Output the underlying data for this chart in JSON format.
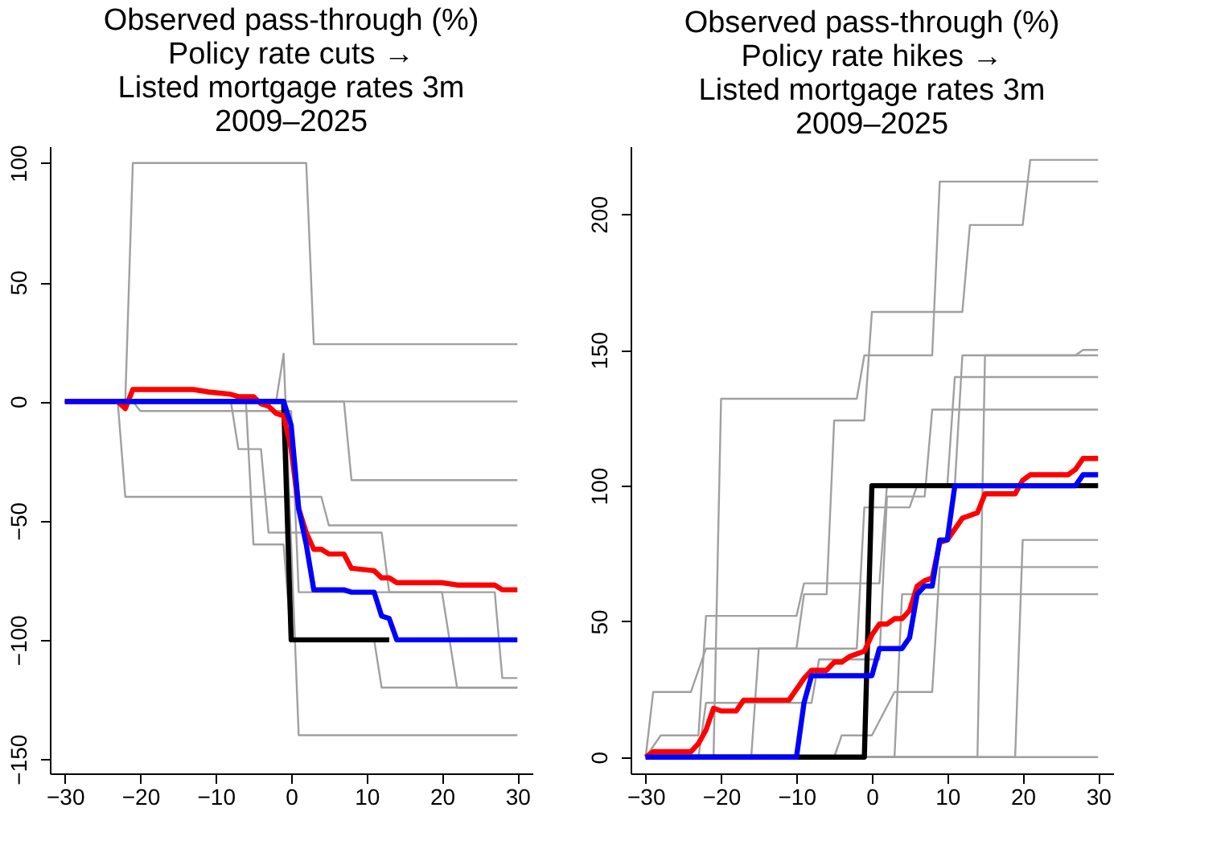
{
  "chart_data": [
    {
      "type": "line",
      "title": "Observed pass-through (%)\nPolicy rate cuts →\nListed mortgage rates 3m\n2009–2025",
      "xlim": [
        -32,
        32
      ],
      "xticks": [
        -30,
        -20,
        -10,
        0,
        10,
        20,
        30
      ],
      "ylim": [
        -156,
        107
      ],
      "yticks": [
        -150,
        -100,
        -50,
        0,
        50,
        100
      ],
      "grid": false,
      "legend": false,
      "line_style": "solid",
      "marker": "none",
      "series": [
        {
          "color": "#a0a0a0",
          "x": [
            -30,
            -22,
            -21,
            2,
            3,
            30
          ],
          "values": [
            0,
            0,
            100,
            100,
            24,
            24
          ]
        },
        {
          "color": "#a0a0a0",
          "x": [
            -30,
            -23,
            -22,
            4,
            5,
            30
          ],
          "values": [
            0,
            0,
            -40,
            -40,
            -52,
            -52
          ]
        },
        {
          "color": "#a0a0a0",
          "x": [
            -30,
            -2,
            -1,
            1,
            30
          ],
          "values": [
            0,
            0,
            20,
            -140,
            -140
          ]
        },
        {
          "color": "#a0a0a0",
          "x": [
            -30,
            7,
            8,
            30
          ],
          "values": [
            0,
            0,
            -33,
            -33
          ]
        },
        {
          "color": "#a0a0a0",
          "x": [
            -30,
            -6,
            -5,
            -1,
            0,
            11,
            12,
            30
          ],
          "values": [
            0,
            0,
            -60,
            -60,
            -100,
            -100,
            -120,
            -120
          ]
        },
        {
          "color": "#a0a0a0",
          "x": [
            -30,
            -8,
            -7,
            -4,
            -3,
            12,
            13,
            27,
            28,
            30
          ],
          "values": [
            0,
            0,
            -20,
            -20,
            -55,
            -55,
            -80,
            -80,
            -116,
            -116
          ]
        },
        {
          "color": "#a0a0a0",
          "x": [
            -30,
            -21,
            -20,
            0,
            1,
            20,
            22,
            30
          ],
          "values": [
            0,
            0,
            -4,
            -4,
            -80,
            -80,
            -120,
            -120
          ]
        },
        {
          "color": "#a0a0a0",
          "x": [
            -30,
            30
          ],
          "values": [
            0,
            0
          ]
        },
        {
          "color": "#000000",
          "x": [
            -30,
            -1,
            0,
            13
          ],
          "values": [
            0,
            0,
            -100,
            -100
          ]
        },
        {
          "color": "#ff0000",
          "x": [
            -30,
            -23,
            -22,
            -21,
            -13,
            -11,
            -8,
            -7,
            -5,
            -4,
            -3,
            -2,
            -1,
            0,
            1,
            2,
            3,
            4,
            5,
            7,
            8,
            11,
            12,
            13,
            14,
            20,
            22,
            27,
            28,
            30
          ],
          "values": [
            0,
            0,
            -3,
            5,
            5,
            4,
            3,
            2,
            2,
            -1,
            -2,
            -5,
            -6,
            -20,
            -45,
            -55,
            -62,
            -62,
            -64,
            -64,
            -70,
            -71,
            -74,
            -74,
            -76,
            -76,
            -77,
            -77,
            -79,
            -79
          ]
        },
        {
          "color": "#0000ff",
          "x": [
            -30,
            -1,
            0,
            1,
            2,
            3,
            7,
            8,
            11,
            12,
            13,
            14,
            30
          ],
          "values": [
            0,
            0,
            -10,
            -45,
            -60,
            -79,
            -79,
            -80,
            -80,
            -90,
            -91,
            -100,
            -100
          ]
        }
      ]
    },
    {
      "type": "line",
      "title": "Observed pass-through (%)\nPolicy rate hikes →\nListed mortgage rates 3m\n2009–2025",
      "xlim": [
        -32,
        32
      ],
      "xticks": [
        -30,
        -20,
        -10,
        0,
        10,
        20,
        30
      ],
      "ylim": [
        -6,
        225
      ],
      "yticks": [
        0,
        50,
        100,
        150,
        200
      ],
      "grid": false,
      "legend": false,
      "line_style": "solid",
      "marker": "none",
      "series": [
        {
          "color": "#a0a0a0",
          "x": [
            -30,
            -29,
            -24,
            -22,
            -10,
            -9,
            -6,
            -5,
            -1,
            0,
            12,
            13,
            20,
            21,
            30
          ],
          "values": [
            0,
            24,
            24,
            40,
            40,
            60,
            60,
            124,
            124,
            164,
            164,
            196,
            196,
            220,
            220
          ]
        },
        {
          "color": "#a0a0a0",
          "x": [
            -30,
            -21,
            -20,
            -2,
            -1,
            8,
            9,
            30
          ],
          "values": [
            0,
            0,
            132,
            132,
            148,
            148,
            212,
            212
          ]
        },
        {
          "color": "#a0a0a0",
          "x": [
            -30,
            -28,
            -23,
            -22,
            -10,
            -9,
            1,
            2,
            11,
            12,
            30
          ],
          "values": [
            0,
            8,
            8,
            52,
            52,
            64,
            64,
            100,
            100,
            148,
            148
          ]
        },
        {
          "color": "#a0a0a0",
          "x": [
            -30,
            -16,
            -15,
            -2,
            -1,
            5,
            6,
            10,
            11,
            30
          ],
          "values": [
            0,
            0,
            40,
            40,
            92,
            92,
            100,
            100,
            140,
            140
          ]
        },
        {
          "color": "#a0a0a0",
          "x": [
            -30,
            -23,
            -22,
            -8,
            -7,
            1,
            2,
            7,
            8,
            30
          ],
          "values": [
            0,
            0,
            20,
            20,
            36,
            36,
            96,
            96,
            128,
            128
          ]
        },
        {
          "color": "#a0a0a0",
          "x": [
            -30,
            -5,
            -4,
            0,
            3,
            8,
            9,
            30
          ],
          "values": [
            0,
            0,
            8,
            8,
            24,
            24,
            70,
            70
          ]
        },
        {
          "color": "#a0a0a0",
          "x": [
            -30,
            14,
            15,
            27,
            28,
            30
          ],
          "values": [
            0,
            0,
            148,
            148,
            150,
            150
          ]
        },
        {
          "color": "#a0a0a0",
          "x": [
            -30,
            19,
            20,
            30
          ],
          "values": [
            0,
            0,
            80,
            80
          ]
        },
        {
          "color": "#a0a0a0",
          "x": [
            -30,
            3,
            4,
            30
          ],
          "values": [
            0,
            0,
            60,
            60
          ]
        },
        {
          "color": "#a0a0a0",
          "x": [
            -30,
            30
          ],
          "values": [
            0,
            0
          ]
        },
        {
          "color": "#000000",
          "x": [
            -30,
            -1,
            0,
            30
          ],
          "values": [
            0,
            0,
            100,
            100
          ]
        },
        {
          "color": "#ff0000",
          "x": [
            -30,
            -29,
            -24,
            -23,
            -22,
            -21,
            -20,
            -18,
            -17,
            -11,
            -10,
            -9,
            -8,
            -6,
            -5,
            -4,
            -3,
            -1,
            0,
            1,
            2,
            3,
            4,
            5,
            6,
            7,
            8,
            9,
            10,
            11,
            12,
            13,
            14,
            15,
            19,
            20,
            21,
            26,
            27,
            28,
            30
          ],
          "values": [
            0,
            2,
            2,
            5,
            10,
            18,
            17,
            17,
            21,
            21,
            25,
            29,
            32,
            32,
            35,
            35,
            37,
            39,
            45,
            49,
            49,
            51,
            51,
            54,
            63,
            65,
            66,
            79,
            80,
            84,
            88,
            89,
            90,
            97,
            97,
            102,
            104,
            104,
            106,
            110,
            110
          ]
        },
        {
          "color": "#0000ff",
          "x": [
            -30,
            -10,
            -9,
            -8,
            0,
            1,
            4,
            5,
            6,
            7,
            8,
            9,
            10,
            11,
            27,
            28,
            30
          ],
          "values": [
            0,
            0,
            20,
            30,
            30,
            40,
            40,
            44,
            60,
            63,
            63,
            80,
            80,
            100,
            100,
            104,
            104
          ]
        }
      ]
    }
  ]
}
